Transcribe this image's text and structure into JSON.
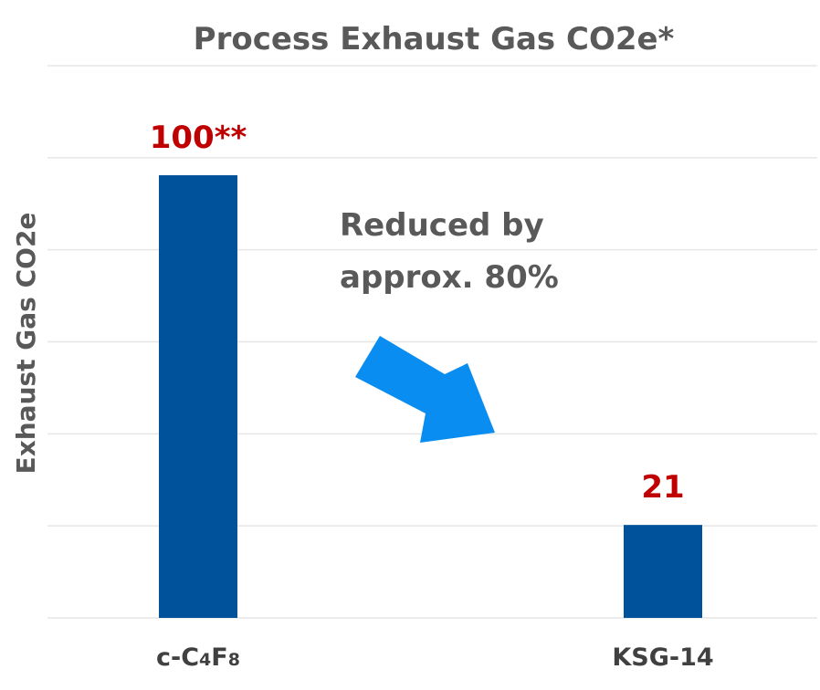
{
  "chart_data": {
    "type": "bar",
    "title": "Process Exhaust Gas CO2e*",
    "xlabel": "",
    "ylabel": "Exhaust Gas CO2e",
    "categories": [
      {
        "main": "c-C",
        "sub1": "4",
        "mid": "F",
        "sub2": "8"
      },
      {
        "main": "KSG-14",
        "sub1": "",
        "mid": "",
        "sub2": ""
      }
    ],
    "values": [
      100,
      21
    ],
    "data_labels": [
      "100**",
      "21"
    ],
    "ylim": [
      0,
      100
    ],
    "grid": true,
    "legend": "none",
    "annotation": {
      "lines": [
        "Reduced by",
        "approx. 80%"
      ]
    },
    "colors": {
      "bar": "#00539b",
      "data_label": "#c00000",
      "arrow": "#0a8df0",
      "text": "#595959"
    }
  }
}
